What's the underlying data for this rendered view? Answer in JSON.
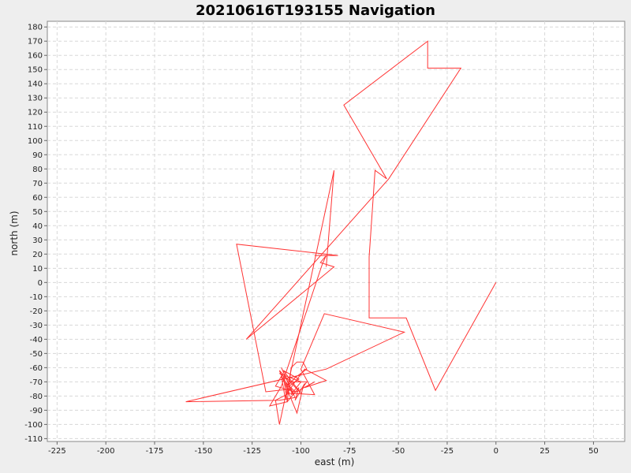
{
  "chart_data": {
    "type": "line",
    "title": "20210616T193155 Navigation",
    "xlabel": "east (m)",
    "ylabel": "north (m)",
    "xlim": [
      -230,
      66
    ],
    "ylim": [
      -112,
      184
    ],
    "x_ticks": [
      -225,
      -200,
      -175,
      -150,
      -125,
      -100,
      -75,
      -50,
      -25,
      0,
      25,
      50
    ],
    "y_ticks": [
      -110,
      -100,
      -90,
      -80,
      -70,
      -60,
      -50,
      -40,
      -30,
      -20,
      -10,
      0,
      10,
      20,
      30,
      40,
      50,
      60,
      70,
      80,
      90,
      100,
      110,
      120,
      130,
      140,
      150,
      160,
      170,
      180
    ],
    "grid": true,
    "legend": "none",
    "background": "#ffffff",
    "page_background": "#eeeeee",
    "series": [
      {
        "color": "#ff3333",
        "x": [
          0,
          -31,
          -46,
          -65,
          -65,
          -62,
          -56,
          -78,
          -35,
          -35,
          -18,
          -55,
          -128,
          -83,
          -90,
          -87,
          -89,
          -110,
          -116,
          -107,
          -105,
          -102,
          -99,
          -97,
          -103,
          -106,
          -110,
          -104,
          -108,
          -103,
          -113,
          -110,
          -108,
          -106,
          -101,
          -109,
          -100,
          -111,
          -102,
          -99,
          -97,
          -105,
          -111,
          -100,
          -105,
          -93,
          -98,
          -87,
          -98,
          -103,
          -107,
          -93,
          -100,
          -88,
          -47,
          -87,
          -159,
          -111,
          -103,
          -105,
          -118,
          -133,
          -81,
          -93
        ],
        "y": [
          0,
          -76,
          -25,
          -25,
          18,
          79,
          73,
          125,
          170,
          151,
          151,
          73,
          -40,
          11,
          14,
          19,
          13,
          -73,
          -87,
          -84,
          -60,
          -56,
          -56,
          -61,
          -67,
          -72,
          -60,
          -79,
          -70,
          -77,
          -73,
          -66,
          -82,
          -73,
          -68,
          -62,
          -78,
          -62,
          -92,
          -74,
          -70,
          -70,
          -64,
          -70,
          -79,
          -70,
          -74,
          -69,
          -61,
          -70,
          -78,
          -79,
          -61,
          -22,
          -35,
          -61,
          -84,
          -83,
          -81,
          -75,
          -77,
          27,
          19,
          19
        ]
      },
      {
        "color": "#ff3333",
        "x": [
          -87,
          -83,
          -111,
          -113,
          -106,
          -109,
          -107,
          -101,
          -103,
          -98
        ],
        "y": [
          11,
          79,
          -100,
          -83,
          -78,
          -66,
          -84,
          -74,
          -83,
          -71
        ]
      }
    ]
  }
}
